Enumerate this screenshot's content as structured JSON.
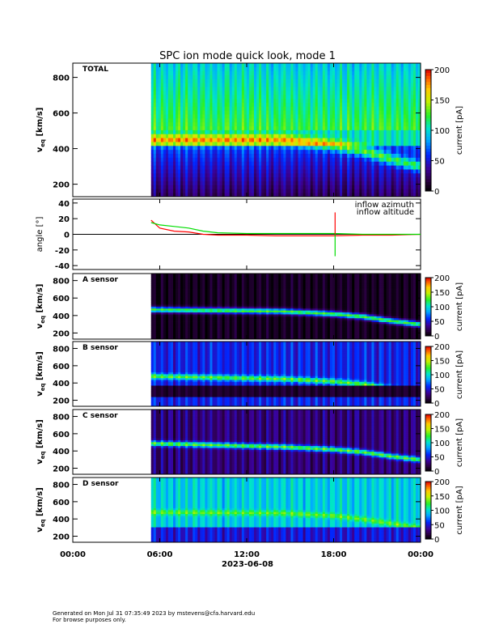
{
  "chart_data": [
    {
      "type": "heatmap",
      "panel": "TOTAL",
      "title": "SPC ion mode quick look, mode 1",
      "ylabel": "v_eq [km/s]",
      "ylabel_main": "v",
      "ylabel_sub": "eq",
      "ylabel_unit": "[km/s]",
      "yticks": [
        "200",
        "400",
        "600",
        "800"
      ],
      "ylim": [
        130,
        880
      ],
      "colorbar_label": "current [pA]",
      "colorbar_ticks": [
        "0",
        "50",
        "100",
        "150",
        "200"
      ],
      "clim": [
        0,
        200
      ],
      "data_start_hour": 5.4,
      "beam_velocity_trend": {
        "hours": [
          5.4,
          14.5,
          18,
          20,
          22,
          24
        ],
        "velocity_kms": [
          450,
          450,
          420,
          390,
          340,
          300
        ]
      }
    },
    {
      "type": "line",
      "panel": "angle",
      "ylabel": "angle [°]",
      "ylim": [
        -45,
        45
      ],
      "yticks": [
        "-40",
        "-20",
        "0",
        "20",
        "40"
      ],
      "legend_placement": "top-right",
      "series": [
        {
          "name": "inflow azimuth",
          "color": "#ff0000",
          "x": [
            5.4,
            6,
            7,
            8,
            9,
            10,
            12,
            14,
            16,
            18,
            20,
            22,
            24
          ],
          "y": [
            18,
            8,
            4,
            3,
            0,
            -1,
            -1,
            -2,
            -2,
            -2,
            -1,
            -1,
            0
          ]
        },
        {
          "name": "inflow altitude",
          "color": "#00dd00",
          "x": [
            5.4,
            6,
            7,
            8,
            9,
            10,
            12,
            14,
            16,
            18,
            20,
            22,
            24
          ],
          "y": [
            15,
            12,
            10,
            8,
            4,
            2,
            1,
            1,
            1,
            1,
            0,
            0,
            0
          ]
        }
      ],
      "spikes": [
        {
          "series": "inflow azimuth",
          "x": 18.1,
          "y_max": 28,
          "y_min": -2
        },
        {
          "series": "inflow altitude",
          "x": 18.1,
          "y_max": 0,
          "y_min": -28
        }
      ]
    },
    {
      "type": "heatmap",
      "panel": "A sensor",
      "ylabel": "v_eq [km/s]",
      "yticks": [
        "200",
        "400",
        "600",
        "800"
      ],
      "ylim": [
        130,
        880
      ],
      "colorbar_label": "current [pA]",
      "colorbar_ticks": [
        "0",
        "50",
        "100",
        "150",
        "200"
      ],
      "clim": [
        0,
        200
      ],
      "background_level": 0.03,
      "beam_velocity_trend": {
        "hours": [
          5.4,
          14.5,
          18,
          20,
          22,
          24
        ],
        "velocity_kms": [
          470,
          450,
          420,
          390,
          340,
          300
        ]
      }
    },
    {
      "type": "heatmap",
      "panel": "B sensor",
      "ylabel": "v_eq [km/s]",
      "yticks": [
        "200",
        "400",
        "600",
        "800"
      ],
      "ylim": [
        130,
        880
      ],
      "colorbar_label": "current [pA]",
      "colorbar_ticks": [
        "0",
        "50",
        "100",
        "150",
        "200"
      ],
      "clim": [
        0,
        200
      ],
      "background_level": 0.25,
      "beam_velocity_trend": {
        "hours": [
          5.4,
          14.5,
          18,
          20,
          22,
          24
        ],
        "velocity_kms": [
          480,
          450,
          420,
          390,
          340,
          300
        ]
      }
    },
    {
      "type": "heatmap",
      "panel": "C sensor",
      "ylabel": "v_eq [km/s]",
      "yticks": [
        "200",
        "400",
        "600",
        "800"
      ],
      "ylim": [
        130,
        880
      ],
      "colorbar_label": "current [pA]",
      "colorbar_ticks": [
        "0",
        "50",
        "100",
        "150",
        "200"
      ],
      "clim": [
        0,
        200
      ],
      "background_level": 0.12,
      "beam_velocity_trend": {
        "hours": [
          5.4,
          14.5,
          18,
          20,
          22,
          24
        ],
        "velocity_kms": [
          490,
          450,
          420,
          390,
          340,
          300
        ]
      }
    },
    {
      "type": "heatmap",
      "panel": "D sensor",
      "ylabel": "v_eq [km/s]",
      "yticks": [
        "200",
        "400",
        "600",
        "800"
      ],
      "ylim": [
        130,
        880
      ],
      "colorbar_label": "current [pA]",
      "colorbar_ticks": [
        "0",
        "50",
        "100",
        "150",
        "200"
      ],
      "clim": [
        0,
        200
      ],
      "background_level": 0.45,
      "beam_velocity_trend": {
        "hours": [
          5.4,
          14.5,
          18,
          20,
          22,
          24
        ],
        "velocity_kms": [
          480,
          470,
          440,
          400,
          350,
          300
        ]
      }
    }
  ],
  "xaxis": {
    "ticks": [
      "00:00",
      "06:00",
      "12:00",
      "18:00",
      "00:00"
    ],
    "tick_hours": [
      0,
      6,
      12,
      18,
      24
    ],
    "date_label": "2023-06-08"
  },
  "footer": {
    "line1": "Generated on Mon Jul 31 07:35:49 2023 by mstevens@cfa.harvard.edu",
    "line2": "For browse purposes only."
  }
}
